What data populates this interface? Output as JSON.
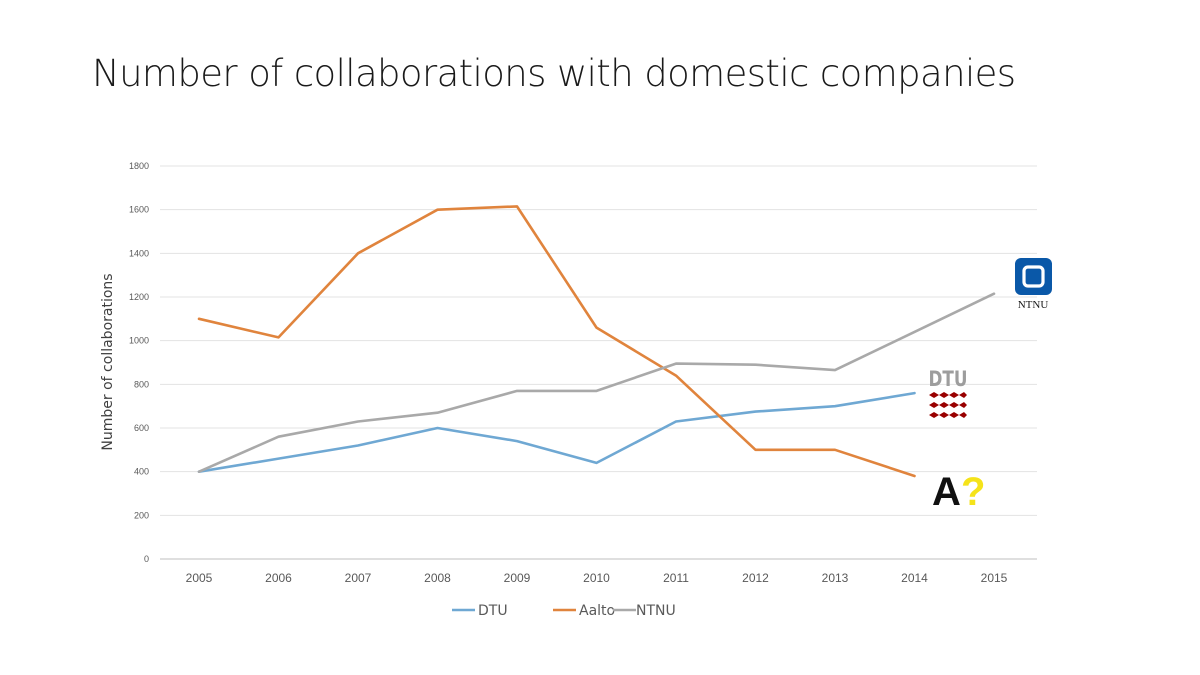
{
  "slide": {
    "title": "Number of collaborations with domestic companies"
  },
  "chart_data": {
    "type": "line",
    "title": "",
    "xlabel": "",
    "ylabel": "Number of collaborations",
    "categories": [
      "2005",
      "2006",
      "2007",
      "2008",
      "2009",
      "2010",
      "2011",
      "2012",
      "2013",
      "2014",
      "2015"
    ],
    "ylim": [
      0,
      1800
    ],
    "yticks": [
      0,
      200,
      400,
      600,
      800,
      1000,
      1200,
      1400,
      1600,
      1800
    ],
    "grid": true,
    "legend": "bottom",
    "series": [
      {
        "name": "DTU",
        "color": "#6fa8d3",
        "values": [
          400,
          460,
          520,
          600,
          540,
          440,
          630,
          675,
          700,
          760,
          null
        ]
      },
      {
        "name": "Aalto",
        "color": "#e0843d",
        "values": [
          1100,
          1015,
          1400,
          1600,
          1615,
          1060,
          840,
          500,
          500,
          380,
          null
        ]
      },
      {
        "name": "NTNU",
        "color": "#a9a9a9",
        "values": [
          400,
          560,
          630,
          670,
          770,
          770,
          895,
          890,
          865,
          1040,
          1215
        ]
      }
    ],
    "annotations": {
      "ntnu_logo": {
        "label": "NTNU",
        "icon": "ntnu-logo-icon",
        "color": "#0a58a8"
      },
      "dtu_logo": {
        "label": "DTU",
        "icon": "dtu-logo-icon",
        "color": "#990000"
      },
      "aalto_logo": {
        "label": "A",
        "mark": "?",
        "icon": "aalto-logo-icon",
        "color": "#f5e31a"
      }
    }
  }
}
